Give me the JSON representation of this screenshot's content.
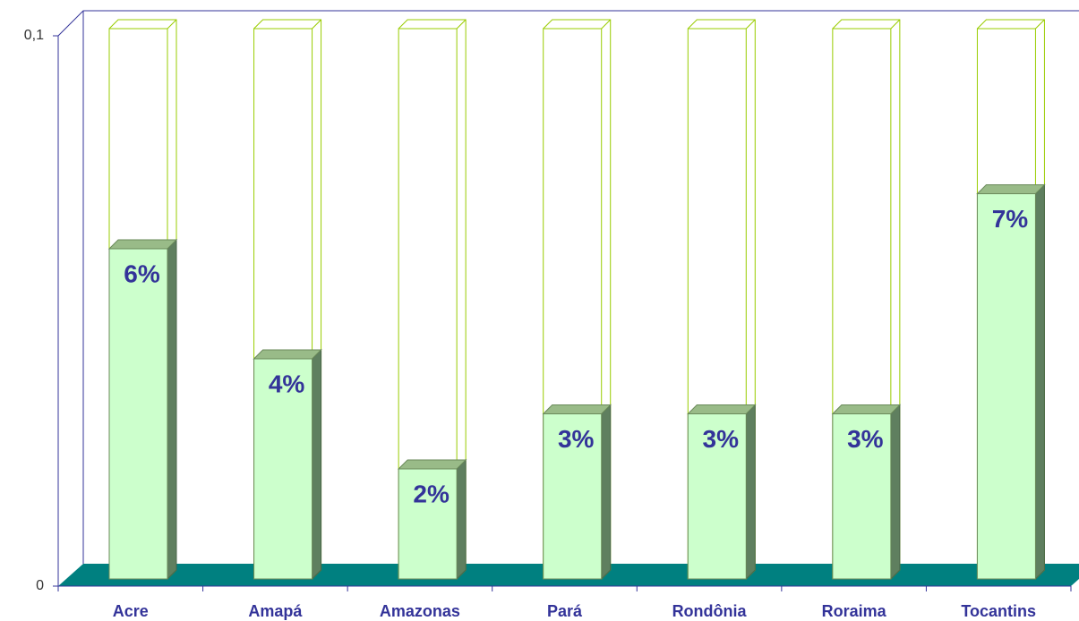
{
  "chart_data": {
    "type": "bar",
    "categories": [
      "Acre",
      "Amapá",
      "Amazonas",
      "Pará",
      "Rondônia",
      "Roraima",
      "Tocantins"
    ],
    "values": [
      0.06,
      0.04,
      0.02,
      0.03,
      0.03,
      0.03,
      0.07
    ],
    "value_labels": [
      "6%",
      "4%",
      "2%",
      "3%",
      "3%",
      "3%",
      "7%"
    ],
    "color": "#ccffcc",
    "ylim": [
      0,
      0.1
    ],
    "yticks": [
      0,
      {
        "value": 0.1,
        "label": "0,1"
      }
    ]
  }
}
